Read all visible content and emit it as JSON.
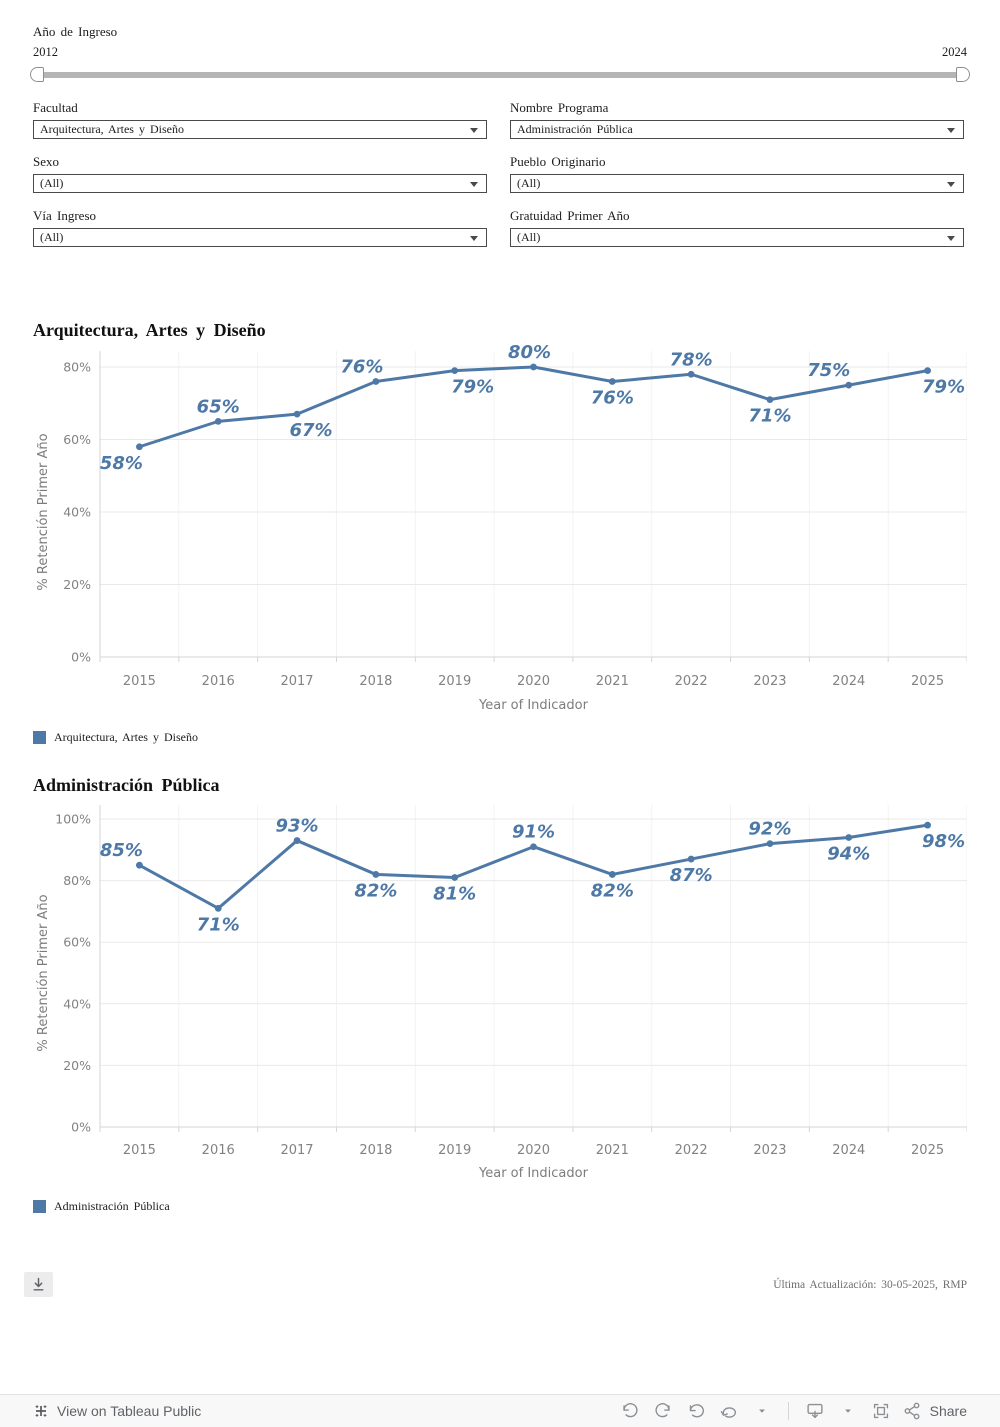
{
  "accent": "#4e79a7",
  "slider": {
    "label": "Año de Ingreso",
    "min": "2012",
    "max": "2024"
  },
  "filters": [
    {
      "label": "Facultad",
      "value": "Arquitectura, Artes y Diseño"
    },
    {
      "label": "Nombre Programa",
      "value": "Administración Pública"
    },
    {
      "label": "Sexo",
      "value": "(All)"
    },
    {
      "label": "Pueblo Originario",
      "value": "(All)"
    },
    {
      "label": "Vía Ingreso",
      "value": "(All)"
    },
    {
      "label": "Gratuidad Primer Año",
      "value": "(All)"
    }
  ],
  "chart_data": [
    {
      "type": "line",
      "title": "Arquitectura, Artes y Diseño",
      "legend": "Arquitectura, Artes y Diseño",
      "legend_position": "bottom-left",
      "xlabel": "Year of Indicador",
      "ylabel": "% Retención Primer Año",
      "x": [
        2015,
        2016,
        2017,
        2018,
        2019,
        2020,
        2021,
        2022,
        2023,
        2024,
        2025
      ],
      "values": [
        58,
        65,
        67,
        76,
        79,
        80,
        76,
        78,
        71,
        75,
        79
      ],
      "labels": [
        "58%",
        "65%",
        "67%",
        "76%",
        "79%",
        "80%",
        "76%",
        "78%",
        "71%",
        "75%",
        "79%"
      ],
      "label_pos": [
        "below",
        "above",
        "below",
        "above",
        "below",
        "above",
        "below",
        "above",
        "below",
        "above",
        "below"
      ],
      "label_dx": [
        -18,
        0,
        14,
        -14,
        18,
        -4,
        0,
        0,
        0,
        -20,
        16
      ],
      "ylim": [
        0,
        80
      ],
      "ytick_values": [
        0,
        20,
        40,
        60,
        80
      ],
      "yticks": [
        "0%",
        "20%",
        "40%",
        "60%",
        "80%"
      ],
      "grid": true,
      "line_color": "#4e79a7"
    },
    {
      "type": "line",
      "title": "Administración Pública",
      "legend": "Administración Pública",
      "legend_position": "bottom-left",
      "xlabel": "Year of Indicador",
      "ylabel": "% Retención Primer Año",
      "x": [
        2015,
        2016,
        2017,
        2018,
        2019,
        2020,
        2021,
        2022,
        2023,
        2024,
        2025
      ],
      "values": [
        85,
        71,
        93,
        82,
        81,
        91,
        82,
        87,
        92,
        94,
        98
      ],
      "labels": [
        "85%",
        "71%",
        "93%",
        "82%",
        "81%",
        "91%",
        "82%",
        "87%",
        "92%",
        "94%",
        "98%"
      ],
      "label_pos": [
        "above",
        "below",
        "above",
        "below",
        "below",
        "above",
        "below",
        "below",
        "above",
        "below",
        "below"
      ],
      "label_dx": [
        -18,
        0,
        0,
        0,
        0,
        0,
        0,
        0,
        0,
        0,
        16
      ],
      "ylim": [
        0,
        100
      ],
      "ytick_values": [
        0,
        20,
        40,
        60,
        80,
        100
      ],
      "yticks": [
        "0%",
        "20%",
        "40%",
        "60%",
        "80%",
        "100%"
      ],
      "grid": true,
      "line_color": "#4e79a7"
    }
  ],
  "bottom": {
    "updated": "Última Actualización: 30-05-2025, RMP"
  },
  "footer_bar": {
    "view_label": "View on Tableau Public",
    "share_label": "Share"
  }
}
